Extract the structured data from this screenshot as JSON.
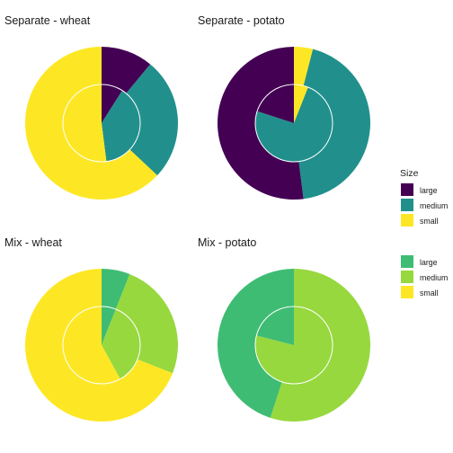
{
  "colors": {
    "dark_purple": "#440154",
    "teal": "#21908C",
    "yellow": "#FDE725",
    "green": "#3FBC73",
    "lime": "#97D83F",
    "ring_outline": "#ffffff"
  },
  "chart_data": [
    {
      "type": "pie",
      "style": "nested-donut",
      "title": "Separate - wheat",
      "outer_ring": [
        {
          "category": "large",
          "value": 0.11,
          "color": "#440154"
        },
        {
          "category": "medium",
          "value": 0.26,
          "color": "#21908C"
        },
        {
          "category": "small",
          "value": 0.63,
          "color": "#FDE725"
        }
      ],
      "inner_ring": [
        {
          "category": "large",
          "value": 0.09,
          "color": "#440154"
        },
        {
          "category": "medium",
          "value": 0.39,
          "color": "#21908C"
        },
        {
          "category": "small",
          "value": 0.52,
          "color": "#FDE725"
        }
      ]
    },
    {
      "type": "pie",
      "style": "nested-donut",
      "title": "Separate - potato",
      "outer_ring": [
        {
          "category": "small",
          "value": 0.04,
          "color": "#FDE725"
        },
        {
          "category": "medium",
          "value": 0.44,
          "color": "#21908C"
        },
        {
          "category": "large",
          "value": 0.52,
          "color": "#440154"
        }
      ],
      "inner_ring": [
        {
          "category": "small",
          "value": 0.06,
          "color": "#FDE725"
        },
        {
          "category": "medium",
          "value": 0.74,
          "color": "#21908C"
        },
        {
          "category": "large",
          "value": 0.2,
          "color": "#440154"
        }
      ]
    },
    {
      "type": "pie",
      "style": "nested-donut",
      "title": "Mix - wheat",
      "outer_ring": [
        {
          "category": "large",
          "value": 0.06,
          "color": "#3FBC73"
        },
        {
          "category": "medium",
          "value": 0.25,
          "color": "#97D83F"
        },
        {
          "category": "small",
          "value": 0.69,
          "color": "#FDE725"
        }
      ],
      "inner_ring": [
        {
          "category": "large",
          "value": 0.06,
          "color": "#3FBC73"
        },
        {
          "category": "medium",
          "value": 0.36,
          "color": "#97D83F"
        },
        {
          "category": "small",
          "value": 0.58,
          "color": "#FDE725"
        }
      ]
    },
    {
      "type": "pie",
      "style": "nested-donut",
      "title": "Mix - potato",
      "outer_ring": [
        {
          "category": "medium",
          "value": 0.55,
          "color": "#97D83F"
        },
        {
          "category": "large",
          "value": 0.45,
          "color": "#3FBC73"
        }
      ],
      "inner_ring": [
        {
          "category": "medium",
          "value": 0.79,
          "color": "#97D83F"
        },
        {
          "category": "large",
          "value": 0.21,
          "color": "#3FBC73"
        }
      ]
    }
  ],
  "legends": [
    {
      "title": "Size",
      "placement": "right-middle",
      "items": [
        {
          "label": "large",
          "color": "#440154"
        },
        {
          "label": "medium",
          "color": "#21908C"
        },
        {
          "label": "small",
          "color": "#FDE725"
        }
      ]
    },
    {
      "title": "",
      "placement": "right-middle",
      "items": [
        {
          "label": "large",
          "color": "#3FBC73"
        },
        {
          "label": "medium",
          "color": "#97D83F"
        },
        {
          "label": "small",
          "color": "#FDE725"
        }
      ]
    }
  ]
}
